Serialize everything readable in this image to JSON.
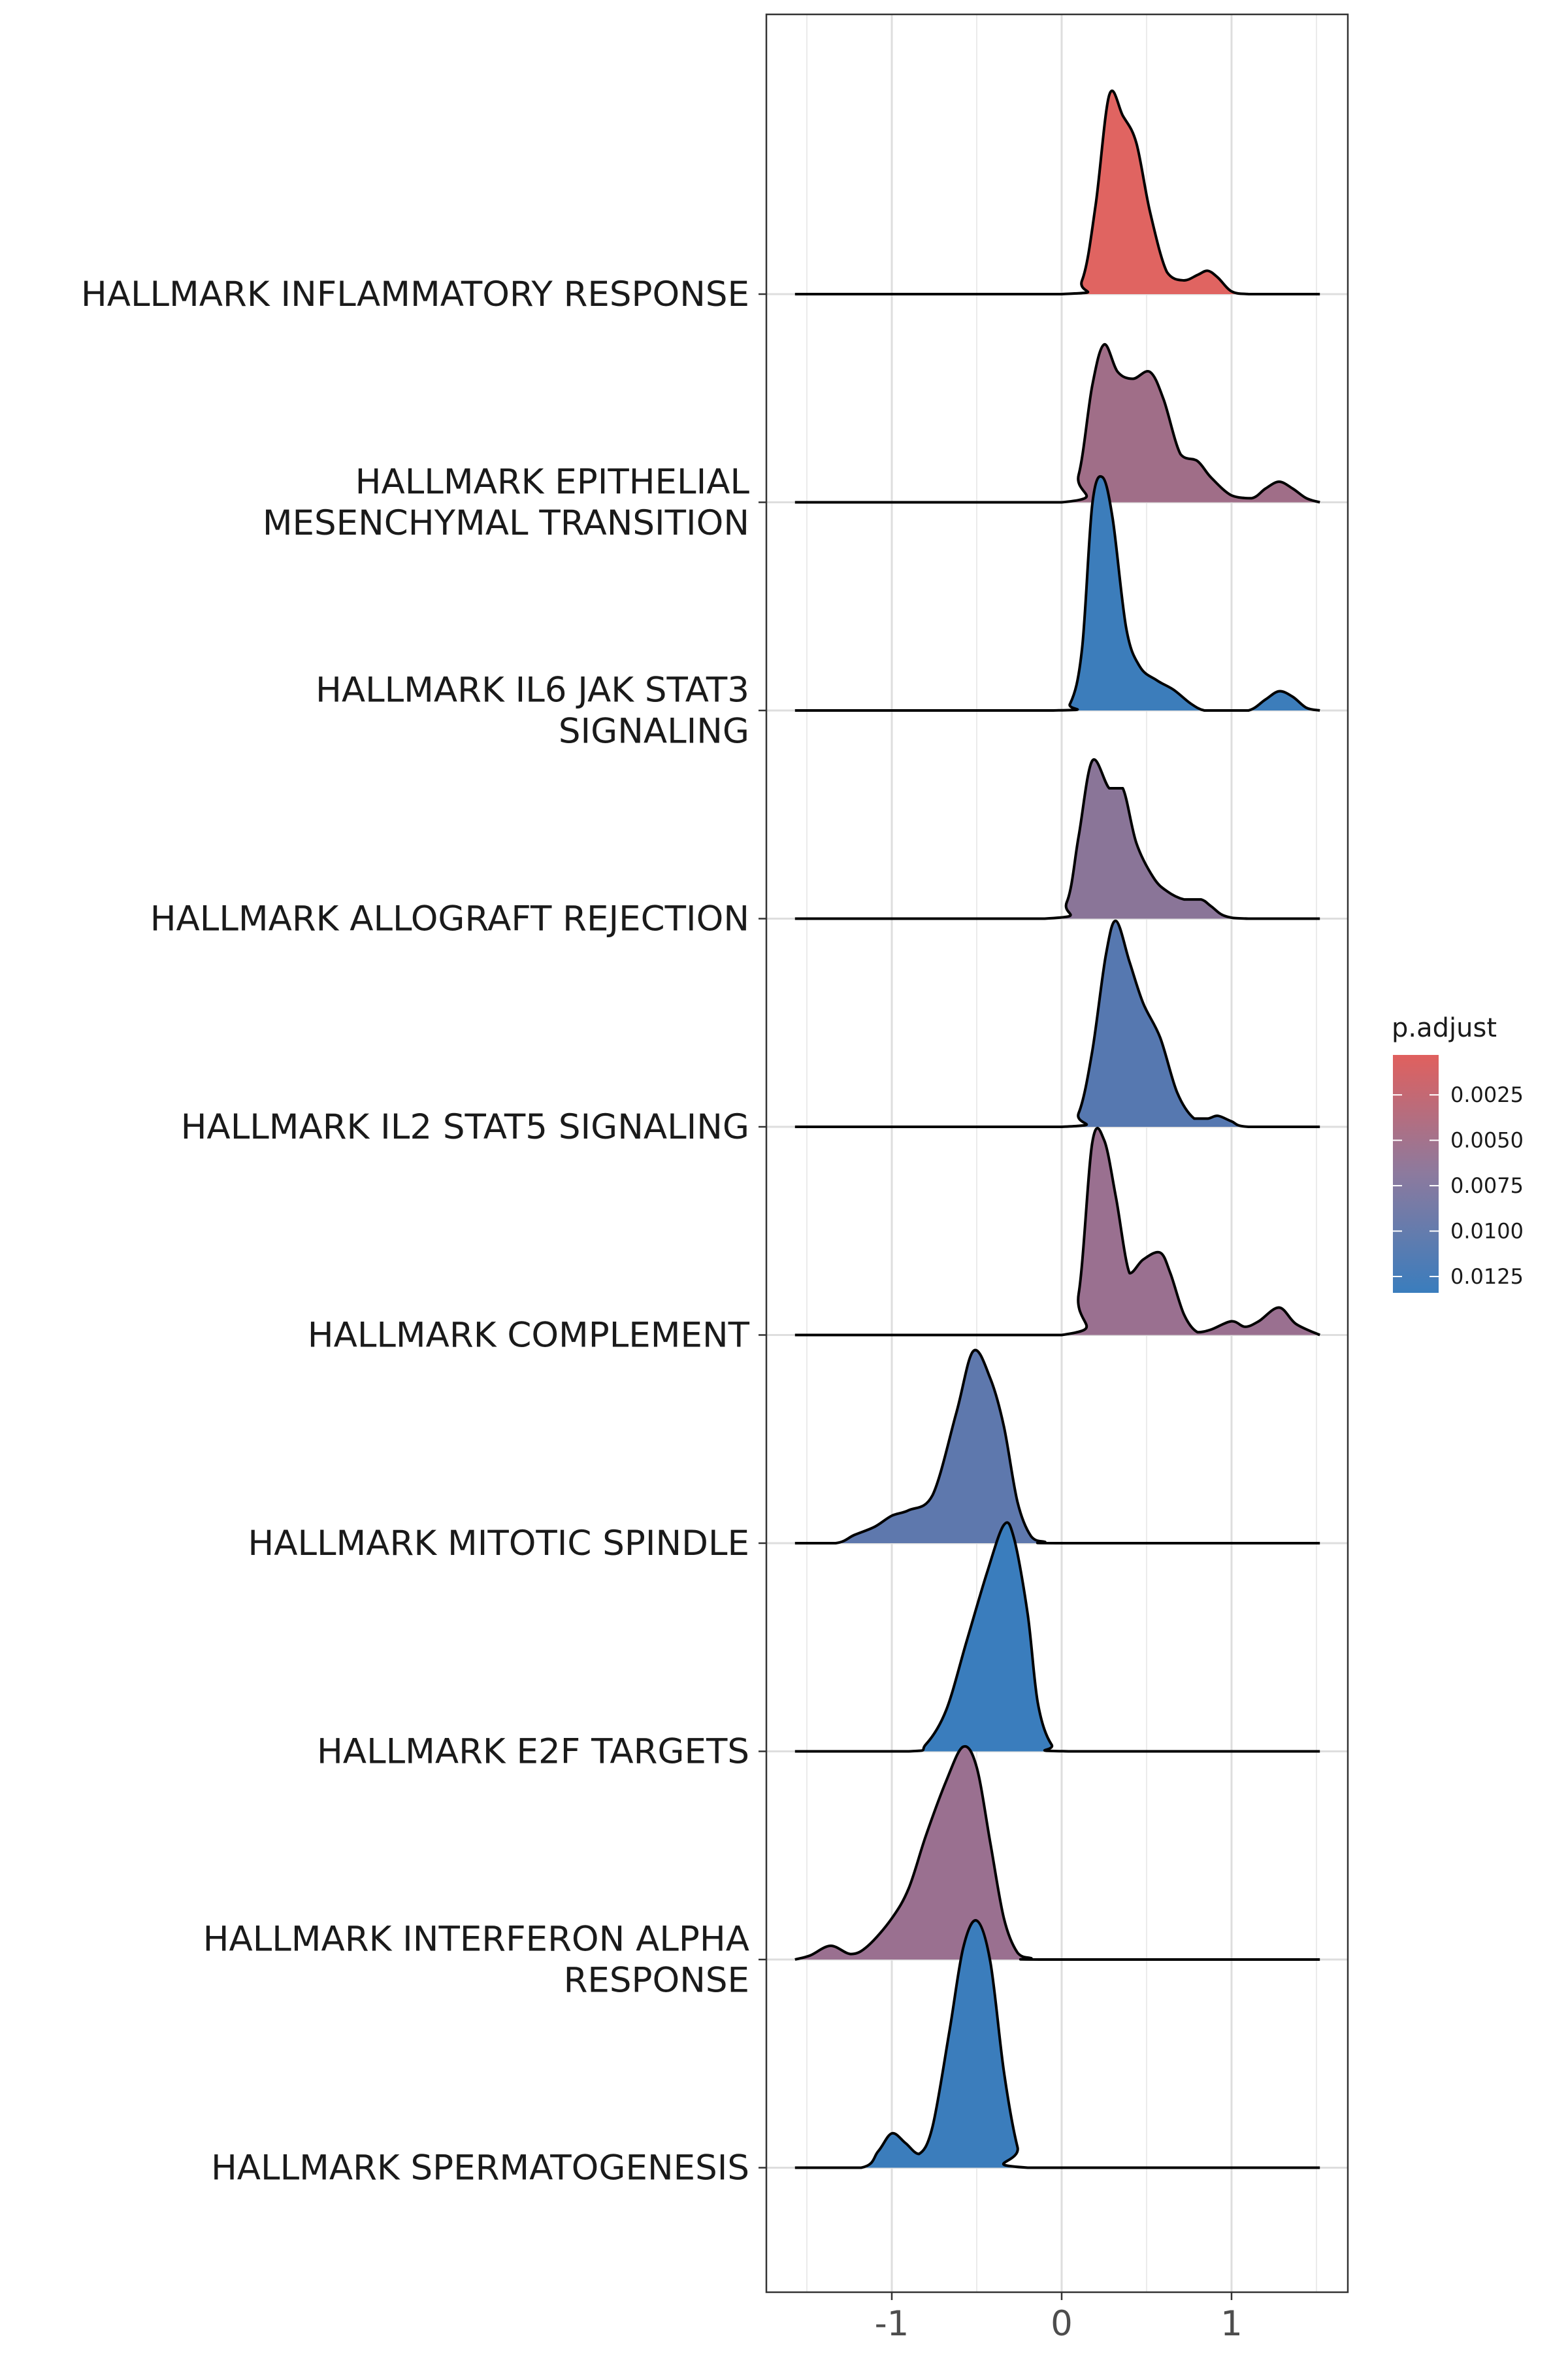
{
  "chart_data": {
    "type": "ridgeline",
    "title": "",
    "xlabel": "",
    "ylabel": "",
    "xlim": [
      -1.75,
      1.67
    ],
    "x_ticks": [
      "-1",
      "0",
      "1"
    ],
    "x_tick_values": [
      -1,
      0,
      1
    ],
    "grid": true,
    "legend": {
      "title": "p.adjust",
      "placement": "right",
      "range": [
        0.0003,
        0.0134
      ],
      "ticks": [
        "0.0025",
        "0.0050",
        "0.0075",
        "0.0100",
        "0.0125"
      ],
      "tick_values": [
        0.0025,
        0.005,
        0.0075,
        0.01,
        0.0125
      ],
      "color_low": "#e0605e",
      "color_high": "#3a7dbd"
    },
    "series": [
      {
        "name": "HALLMARK INFLAMMATORY RESPONSE",
        "label_lines": [
          "HALLMARK INFLAMMATORY RESPONSE"
        ],
        "p_adjust": 0.0003,
        "color": "#e06461",
        "x": [
          -1.57,
          0.0,
          0.12,
          0.2,
          0.28,
          0.36,
          0.44,
          0.52,
          0.62,
          0.72,
          0.8,
          0.86,
          0.92,
          1.0,
          1.1,
          1.2,
          1.52
        ],
        "density": [
          0,
          0,
          0.1,
          0.65,
          1.45,
          1.3,
          1.1,
          0.6,
          0.16,
          0.1,
          0.14,
          0.17,
          0.12,
          0.02,
          0,
          0,
          0
        ]
      },
      {
        "name": "HALLMARK EPITHELIAL MESENCHYMAL TRANSITION",
        "label_lines": [
          "HALLMARK EPITHELIAL",
          "MESENCHYMAL TRANSITION"
        ],
        "p_adjust": 0.0057,
        "color": "#a06e88",
        "x": [
          -1.57,
          0.0,
          0.1,
          0.18,
          0.25,
          0.33,
          0.42,
          0.52,
          0.6,
          0.7,
          0.8,
          0.88,
          1.0,
          1.12,
          1.2,
          1.28,
          1.36,
          1.44,
          1.52
        ],
        "density": [
          0,
          0,
          0.2,
          0.85,
          1.15,
          0.95,
          0.9,
          0.95,
          0.75,
          0.35,
          0.3,
          0.18,
          0.05,
          0.03,
          0.1,
          0.15,
          0.1,
          0.03,
          0
        ]
      },
      {
        "name": "HALLMARK IL6 JAK STAT3 SIGNALING",
        "label_lines": [
          "HALLMARK IL6 JAK STAT3",
          "SIGNALING"
        ],
        "p_adjust": 0.0125,
        "color": "#3c7dbb",
        "x": [
          -1.57,
          -0.05,
          0.05,
          0.12,
          0.18,
          0.24,
          0.3,
          0.38,
          0.46,
          0.56,
          0.66,
          0.76,
          0.84,
          0.94,
          1.1,
          1.2,
          1.28,
          1.36,
          1.44,
          1.52
        ],
        "density": [
          0,
          0,
          0.05,
          0.45,
          1.5,
          1.7,
          1.4,
          0.6,
          0.32,
          0.22,
          0.15,
          0.05,
          0,
          0,
          0,
          0.08,
          0.14,
          0.1,
          0.02,
          0
        ]
      },
      {
        "name": "HALLMARK ALLOGRAFT REJECTION",
        "label_lines": [
          "HALLMARK ALLOGRAFT REJECTION"
        ],
        "p_adjust": 0.0088,
        "color": "#8a7598",
        "x": [
          -1.57,
          -0.1,
          0.03,
          0.1,
          0.18,
          0.28,
          0.36,
          0.44,
          0.54,
          0.62,
          0.72,
          0.82,
          0.88,
          0.96,
          1.1,
          1.52
        ],
        "density": [
          0,
          0,
          0.12,
          0.6,
          1.15,
          0.95,
          0.95,
          0.55,
          0.3,
          0.2,
          0.14,
          0.14,
          0.09,
          0.02,
          0,
          0
        ]
      },
      {
        "name": "HALLMARK IL2 STAT5 SIGNALING",
        "label_lines": [
          "HALLMARK IL2 STAT5 SIGNALING"
        ],
        "p_adjust": 0.0113,
        "color": "#5678b0",
        "x": [
          -1.57,
          0.0,
          0.1,
          0.18,
          0.26,
          0.32,
          0.4,
          0.48,
          0.58,
          0.68,
          0.78,
          0.86,
          0.92,
          1.0,
          1.1,
          1.52
        ],
        "density": [
          0,
          0,
          0.1,
          0.55,
          1.25,
          1.5,
          1.2,
          0.9,
          0.65,
          0.25,
          0.06,
          0.06,
          0.08,
          0.04,
          0,
          0
        ]
      },
      {
        "name": "HALLMARK COMPLEMENT",
        "label_lines": [
          "HALLMARK COMPLEMENT"
        ],
        "p_adjust": 0.0065,
        "color": "#9a7090",
        "x": [
          -1.57,
          0.0,
          0.1,
          0.18,
          0.25,
          0.32,
          0.4,
          0.48,
          0.58,
          0.64,
          0.72,
          0.8,
          0.88,
          1.0,
          1.08,
          1.16,
          1.28,
          1.38,
          1.52
        ],
        "density": [
          0,
          0,
          0.3,
          1.4,
          1.42,
          1.0,
          0.45,
          0.55,
          0.6,
          0.45,
          0.15,
          0.02,
          0.04,
          0.1,
          0.06,
          0.1,
          0.2,
          0.08,
          0
        ]
      },
      {
        "name": "HALLMARK MITOTIC SPINDLE",
        "label_lines": [
          "HALLMARK MITOTIC SPINDLE"
        ],
        "p_adjust": 0.011,
        "color": "#5e78ad",
        "x": [
          -1.57,
          -1.33,
          -1.22,
          -1.1,
          -1.0,
          -0.9,
          -0.76,
          -0.62,
          -0.52,
          -0.42,
          -0.34,
          -0.26,
          -0.18,
          -0.1,
          0.0,
          1.52
        ],
        "density": [
          0,
          0,
          0.06,
          0.12,
          0.2,
          0.24,
          0.35,
          0.95,
          1.4,
          1.2,
          0.85,
          0.3,
          0.05,
          0.01,
          0,
          0
        ]
      },
      {
        "name": "HALLMARK E2F TARGETS",
        "label_lines": [
          "HALLMARK E2F TARGETS"
        ],
        "p_adjust": 0.013,
        "color": "#3a7dbd",
        "x": [
          -1.57,
          -0.9,
          -0.8,
          -0.68,
          -0.56,
          -0.44,
          -0.34,
          -0.28,
          -0.2,
          -0.14,
          -0.06,
          0.04,
          1.52
        ],
        "density": [
          0,
          0,
          0.05,
          0.3,
          0.8,
          1.3,
          1.65,
          1.55,
          1.0,
          0.35,
          0.05,
          0,
          0
        ]
      },
      {
        "name": "HALLMARK INTERFERON ALPHA RESPONSE",
        "label_lines": [
          "HALLMARK INTERFERON ALPHA",
          "RESPONSE"
        ],
        "p_adjust": 0.0067,
        "color": "#9a7090",
        "x": [
          -1.57,
          -1.48,
          -1.36,
          -1.24,
          -1.14,
          -1.0,
          -0.9,
          -0.8,
          -0.68,
          -0.58,
          -0.5,
          -0.42,
          -0.34,
          -0.26,
          -0.18,
          -0.1,
          1.52
        ],
        "density": [
          0,
          0.03,
          0.1,
          0.04,
          0.1,
          0.3,
          0.52,
          0.9,
          1.3,
          1.55,
          1.4,
          0.85,
          0.3,
          0.05,
          0.01,
          0,
          0
        ]
      },
      {
        "name": "HALLMARK SPERMATOGENESIS",
        "label_lines": [
          "HALLMARK SPERMATOGENESIS"
        ],
        "p_adjust": 0.0128,
        "color": "#3b7dbc",
        "x": [
          -1.57,
          -1.18,
          -1.08,
          -1.0,
          -0.92,
          -0.84,
          -0.76,
          -0.66,
          -0.58,
          -0.5,
          -0.42,
          -0.34,
          -0.26,
          -0.2,
          1.52
        ],
        "density": [
          0,
          0,
          0.12,
          0.25,
          0.18,
          0.1,
          0.3,
          1.0,
          1.6,
          1.8,
          1.5,
          0.7,
          0.15,
          0,
          0
        ]
      }
    ]
  }
}
